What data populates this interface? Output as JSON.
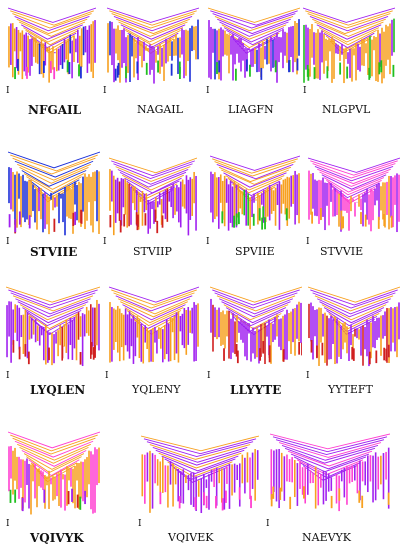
{
  "figure": {
    "panels": [
      {
        "label": "NFGAIL",
        "bold": true,
        "marker": "I",
        "colors": [
          "#f7a020",
          "#a020f0",
          "#1c2fd8",
          "#20c020",
          "#ff40d0"
        ],
        "main_color": 0
      },
      {
        "label": "NAGAIL",
        "bold": false,
        "marker": "I",
        "colors": [
          "#f7a020",
          "#a020f0",
          "#1c2fd8",
          "#20c020"
        ],
        "main_color": 0
      },
      {
        "label": "LIAGFN",
        "bold": false,
        "marker": "I",
        "colors": [
          "#a020f0",
          "#f7a020",
          "#1c2fd8",
          "#20c020"
        ],
        "main_color": 0
      },
      {
        "label": "NLGPVL",
        "bold": false,
        "marker": "I",
        "colors": [
          "#f7a020",
          "#a020f0",
          "#20c020"
        ],
        "main_color": 0
      },
      {
        "label": "STVIIE",
        "bold": true,
        "marker": "I",
        "colors": [
          "#f7a020",
          "#1c2fd8",
          "#a020f0",
          "#d02020"
        ],
        "main_color": 0
      },
      {
        "label": "STVIIP",
        "bold": false,
        "marker": "I",
        "colors": [
          "#a020f0",
          "#f7a020",
          "#d02020"
        ],
        "main_color": 0
      },
      {
        "label": "SPVIIE",
        "bold": false,
        "marker": "I",
        "colors": [
          "#f7a020",
          "#a020f0",
          "#20c020"
        ],
        "main_color": 0
      },
      {
        "label": "STVVIE",
        "bold": false,
        "marker": "I",
        "colors": [
          "#ff40d0",
          "#a020f0",
          "#f7a020"
        ],
        "main_color": 0
      },
      {
        "label": "LYQLEN",
        "bold": true,
        "marker": "I",
        "colors": [
          "#a020f0",
          "#f7a020",
          "#d02020"
        ],
        "main_color": 0
      },
      {
        "label": "YQLENY",
        "bold": false,
        "marker": "I",
        "colors": [
          "#f7a020",
          "#a020f0"
        ],
        "main_color": 0
      },
      {
        "label": "LLYYTE",
        "bold": true,
        "marker": "I",
        "colors": [
          "#a020f0",
          "#f7a020",
          "#d02020"
        ],
        "main_color": 0
      },
      {
        "label": "YYTEFT",
        "bold": false,
        "marker": "I",
        "colors": [
          "#a020f0",
          "#f7a020",
          "#d02020"
        ],
        "main_color": 0
      },
      {
        "label": "VQIVYK",
        "bold": true,
        "marker": "I",
        "colors": [
          "#f7a020",
          "#ff40d0",
          "#a020f0",
          "#20c020",
          "#d02020"
        ],
        "main_color": 0
      },
      {
        "label": "VQIVEK",
        "bold": false,
        "marker": "I",
        "colors": [
          "#a020f0",
          "#f7a020",
          "#ff40d0"
        ],
        "main_color": 0
      },
      {
        "label": "NAEVYK",
        "bold": false,
        "marker": "I",
        "colors": [
          "#a020f0",
          "#ff40d0",
          "#f7a020"
        ],
        "main_color": 0
      }
    ]
  }
}
